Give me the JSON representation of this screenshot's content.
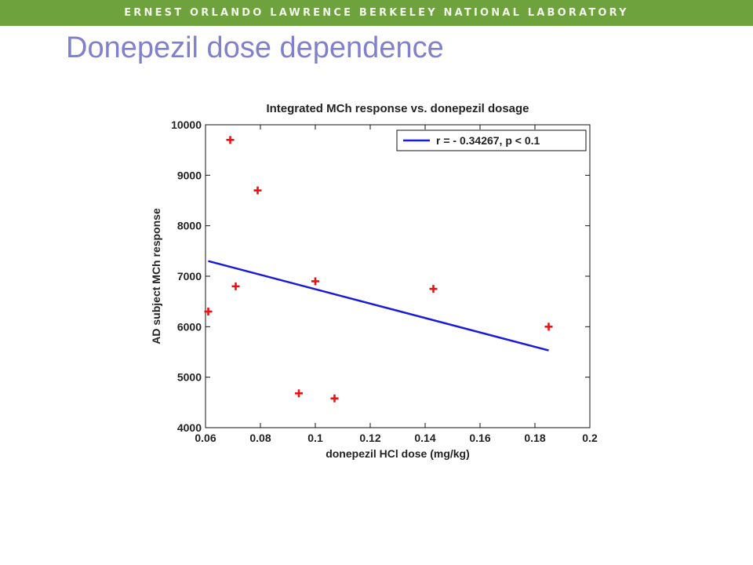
{
  "header": {
    "banner_text": "Ernest Orlando Lawrence Berkeley National Laboratory"
  },
  "page": {
    "title": "Donepezil dose dependence"
  },
  "colors": {
    "banner": "#6ea23c",
    "title": "#8080cc",
    "fit_line": "#1a1adb",
    "markers": "#ee1111"
  },
  "chart_data": {
    "type": "scatter",
    "title": "Integrated MCh response vs. donepezil dosage",
    "xlabel": "donepezil HCl dose (mg/kg)",
    "ylabel": "AD subject MCh response",
    "xlim": [
      0.06,
      0.2
    ],
    "ylim": [
      4000,
      10000
    ],
    "xticks": [
      "0.06",
      "0.08",
      "0.1",
      "0.12",
      "0.14",
      "0.16",
      "0.18",
      "0.2"
    ],
    "yticks": [
      "4000",
      "5000",
      "6000",
      "7000",
      "8000",
      "9000",
      "10000"
    ],
    "grid": false,
    "legend_position": "top-right",
    "points": [
      {
        "x": 0.061,
        "y": 6300
      },
      {
        "x": 0.069,
        "y": 9700
      },
      {
        "x": 0.071,
        "y": 6800
      },
      {
        "x": 0.079,
        "y": 8700
      },
      {
        "x": 0.094,
        "y": 4680
      },
      {
        "x": 0.1,
        "y": 6900
      },
      {
        "x": 0.107,
        "y": 4580
      },
      {
        "x": 0.143,
        "y": 6750
      },
      {
        "x": 0.185,
        "y": 6000
      }
    ],
    "fit_line": {
      "label": "r = - 0.34267,  p < 0.1",
      "x": [
        0.061,
        0.185
      ],
      "y": [
        7300,
        5530
      ]
    }
  }
}
